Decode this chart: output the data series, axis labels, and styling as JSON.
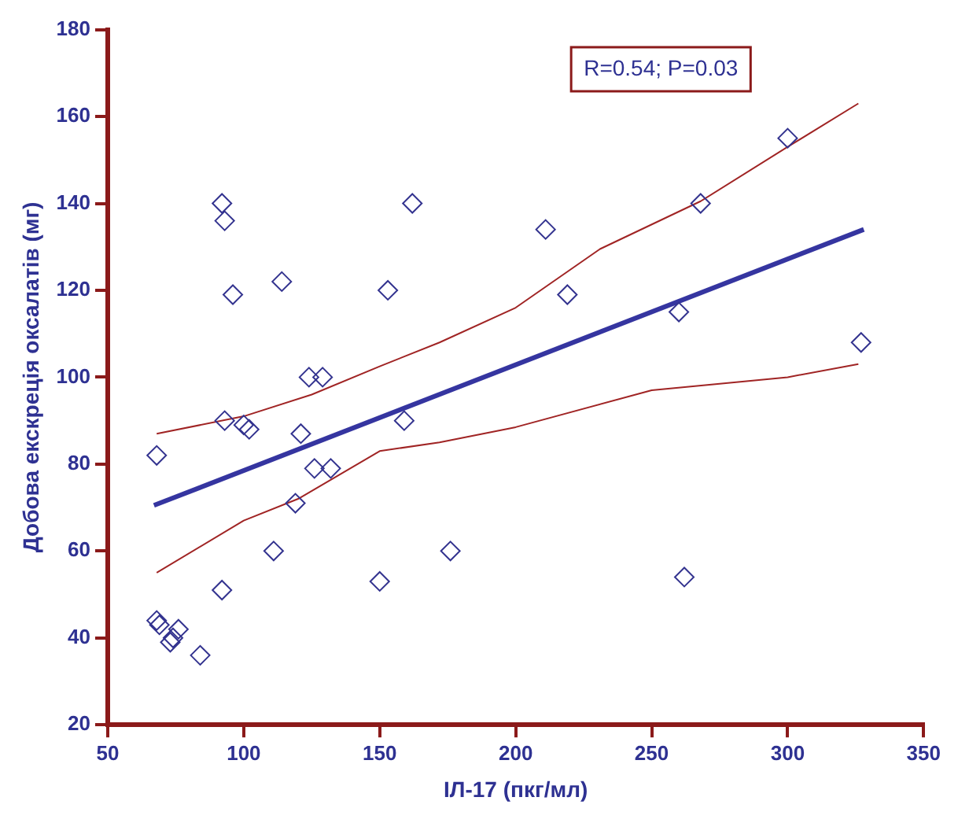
{
  "chart_data": {
    "type": "scatter",
    "xlabel": "ІЛ-17 (пкг/мл)",
    "ylabel": "Добова екскреція оксалатів (мг)",
    "annotations": [
      "R=0.54; P=0.03"
    ],
    "xlim": [
      50,
      350
    ],
    "xticks": [
      50,
      100,
      150,
      200,
      250,
      300,
      350
    ],
    "ylim": [
      20,
      180
    ],
    "yticks": [
      20,
      40,
      60,
      80,
      100,
      120,
      140,
      160,
      180
    ],
    "grid": false,
    "legend": false,
    "series": [
      {
        "marker": "diamond",
        "color": "#33338f",
        "x": [
          68,
          68,
          69,
          73,
          74,
          76,
          84,
          92,
          93,
          92,
          93,
          96,
          100,
          102,
          111,
          114,
          121,
          119,
          124,
          129,
          126,
          132,
          150,
          153,
          159,
          162,
          176,
          211,
          219,
          260,
          262,
          268,
          300,
          327
        ],
        "values": [
          82,
          44,
          43,
          39,
          40,
          42,
          36,
          140,
          136,
          51,
          90,
          119,
          89,
          88,
          60,
          122,
          87,
          71,
          100,
          100,
          79,
          79,
          53,
          120,
          90,
          140,
          60,
          134,
          119,
          115,
          54,
          140,
          155,
          108
        ]
      },
      {
        "type": "line",
        "color": "#3535a0",
        "x": [
          67,
          328
        ],
        "values": [
          70.5,
          134
        ]
      },
      {
        "type": "line",
        "color": "#a02424",
        "x": [
          68,
          100,
          125,
          150,
          172,
          200,
          231,
          268,
          300,
          326
        ],
        "values": [
          87,
          91,
          96,
          102.5,
          108,
          116,
          129.5,
          140.5,
          153,
          163
        ]
      },
      {
        "type": "line",
        "color": "#a02424",
        "x": [
          68,
          100,
          120,
          150,
          172,
          200,
          250,
          300,
          326
        ],
        "values": [
          55,
          67,
          72,
          83,
          85,
          88.5,
          97,
          100,
          103
        ]
      }
    ]
  }
}
